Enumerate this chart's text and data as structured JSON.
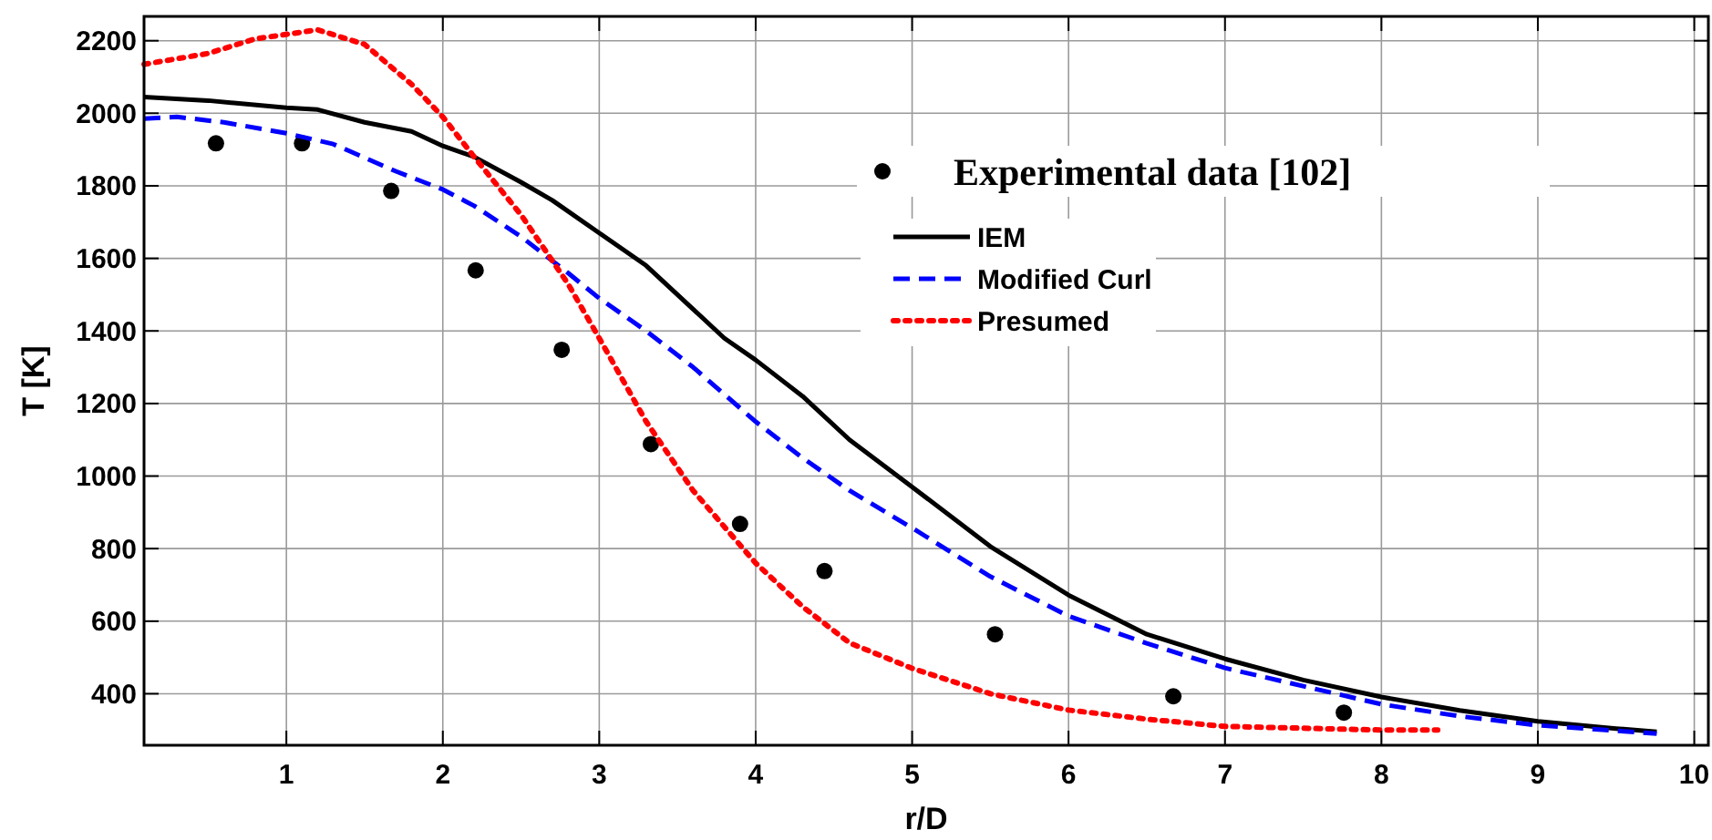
{
  "chart_data": {
    "type": "line",
    "xlabel": "r/D",
    "ylabel": "T [K]",
    "xlim": [
      0.09,
      10.09
    ],
    "ylim": [
      258,
      2267
    ],
    "xticks": [
      1,
      2,
      3,
      4,
      5,
      6,
      7,
      8,
      9,
      10
    ],
    "yticks": [
      400,
      600,
      800,
      1000,
      1200,
      1400,
      1600,
      1800,
      2000,
      2200
    ],
    "grid": true,
    "legend": "top right",
    "series": [
      {
        "name": "Experimental data [102]",
        "type": "scatter",
        "marker": "circle",
        "color": "#000000",
        "x": [
          0.55,
          1.1,
          1.67,
          2.21,
          2.76,
          3.33,
          3.9,
          4.44,
          5.53,
          6.67,
          7.76
        ],
        "values": [
          1917,
          1917,
          1786,
          1567,
          1348,
          1088,
          868,
          738,
          564,
          393,
          348
        ]
      },
      {
        "name": "IEM",
        "line_style": "solid",
        "color": "#000000",
        "x": [
          0.09,
          0.5,
          1,
          1.2,
          1.5,
          1.8,
          2,
          2.2,
          2.5,
          2.7,
          3,
          3.3,
          3.6,
          3.8,
          4,
          4.3,
          4.6,
          5,
          5.5,
          6,
          6.5,
          7,
          7.5,
          8,
          8.5,
          9,
          9.5,
          9.76
        ],
        "values": [
          2045,
          2035,
          2015,
          2010,
          1975,
          1950,
          1910,
          1880,
          1810,
          1760,
          1670,
          1580,
          1460,
          1380,
          1320,
          1220,
          1100,
          970,
          806,
          672,
          564,
          496,
          438,
          391,
          354,
          324,
          304,
          295
        ]
      },
      {
        "name": "Modified Curl",
        "line_style": "dashed",
        "color": "#0000ff",
        "x": [
          0.09,
          0.3,
          0.6,
          1,
          1.3,
          1.7,
          2,
          2.2,
          2.5,
          2.8,
          3,
          3.3,
          3.6,
          4,
          4.3,
          4.6,
          5,
          5.5,
          6,
          6.5,
          7,
          7.5,
          8,
          8.5,
          9,
          9.5,
          9.76
        ],
        "values": [
          1985,
          1990,
          1975,
          1945,
          1915,
          1840,
          1790,
          1745,
          1660,
          1560,
          1490,
          1400,
          1300,
          1150,
          1050,
          960,
          857,
          723,
          614,
          539,
          471,
          421,
          371,
          338,
          313,
          298,
          290
        ]
      },
      {
        "name": "Presumed",
        "line_style": "dotted",
        "color": "#ff0000",
        "x": [
          0.09,
          0.5,
          0.8,
          1.2,
          1.5,
          1.8,
          2,
          2.2,
          2.5,
          2.8,
          3,
          3.3,
          3.6,
          4,
          4.3,
          4.6,
          5,
          5.5,
          6,
          6.5,
          7,
          7.5,
          8,
          8.36
        ],
        "values": [
          2135,
          2165,
          2205,
          2230,
          2190,
          2080,
          1990,
          1880,
          1720,
          1530,
          1380,
          1150,
          960,
          760,
          640,
          540,
          470,
          400,
          355,
          330,
          310,
          305,
          300,
          300
        ]
      }
    ]
  }
}
